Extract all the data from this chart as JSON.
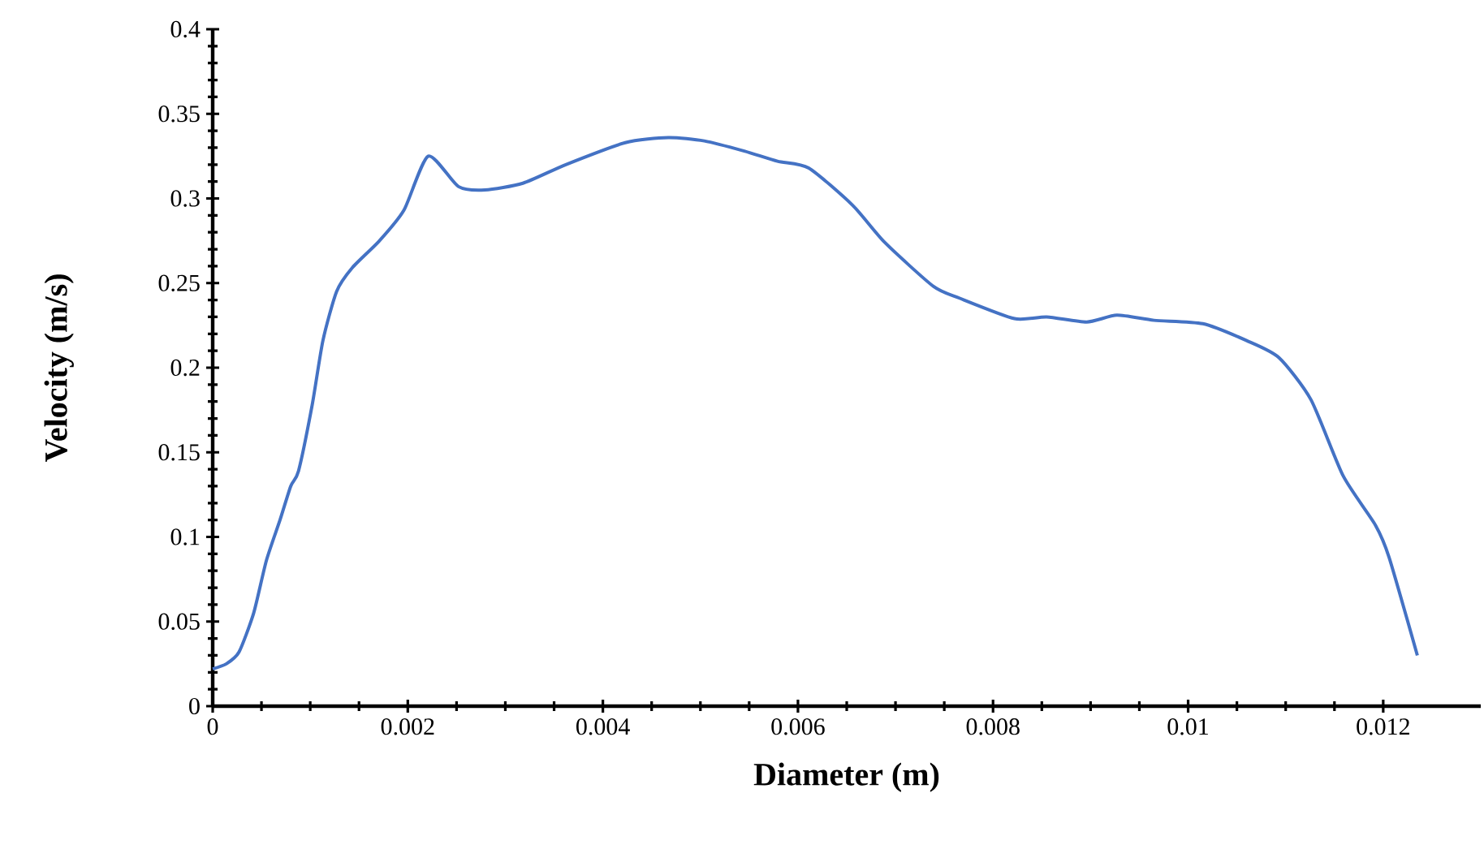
{
  "chart_data": {
    "type": "line",
    "xlabel": "Diameter (m)",
    "ylabel": "Velocity (m/s)",
    "xlim": [
      0,
      0.013
    ],
    "ylim": [
      0,
      0.4
    ],
    "xticks": [
      0,
      0.002,
      0.004,
      0.006,
      0.008,
      0.01,
      0.012
    ],
    "yticks": [
      0,
      0.05,
      0.1,
      0.15,
      0.2,
      0.25,
      0.3,
      0.35,
      0.4
    ],
    "grid": false,
    "marker": "none",
    "line_style": "solid",
    "series": [
      {
        "color": "#4472c4",
        "x": [
          0,
          0.00014,
          0.00027,
          0.00042,
          0.00055,
          0.00069,
          0.0008,
          0.00088,
          0.00102,
          0.00113,
          0.00127,
          0.00143,
          0.00171,
          0.00196,
          0.00221,
          0.00252,
          0.00279,
          0.00318,
          0.00362,
          0.00423,
          0.00467,
          0.00504,
          0.00545,
          0.00579,
          0.00611,
          0.00656,
          0.00689,
          0.00739,
          0.00766,
          0.00822,
          0.00855,
          0.00896,
          0.00927,
          0.00965,
          0.01015,
          0.0106,
          0.01093,
          0.01126,
          0.01159,
          0.01192,
          0.01206,
          0.01235
        ],
        "values": [
          0.022,
          0.025,
          0.032,
          0.055,
          0.086,
          0.11,
          0.13,
          0.139,
          0.178,
          0.216,
          0.245,
          0.259,
          0.275,
          0.293,
          0.325,
          0.307,
          0.305,
          0.309,
          0.32,
          0.333,
          0.336,
          0.334,
          0.328,
          0.322,
          0.318,
          0.296,
          0.274,
          0.248,
          0.241,
          0.229,
          0.23,
          0.227,
          0.231,
          0.228,
          0.226,
          0.216,
          0.206,
          0.181,
          0.136,
          0.107,
          0.088,
          0.03
        ]
      }
    ]
  }
}
